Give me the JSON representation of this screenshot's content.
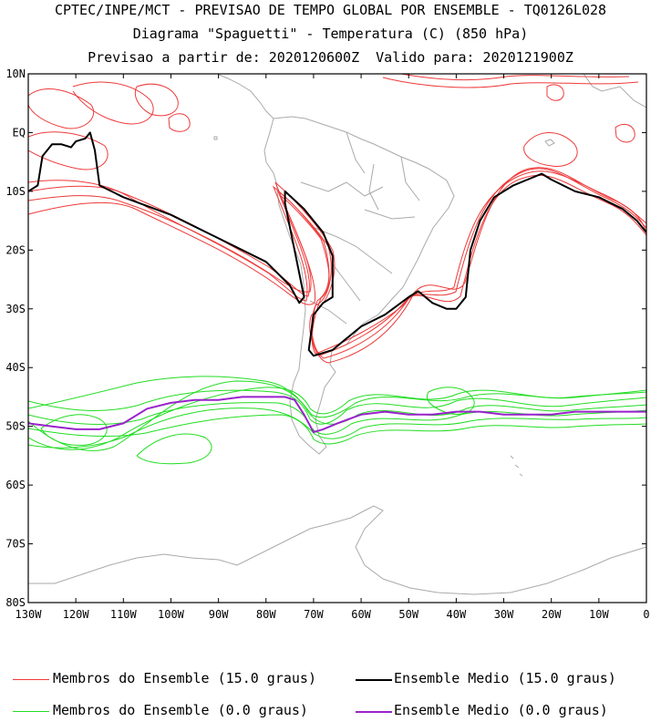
{
  "header": {
    "line1": "CPTEC/INPE/MCT - PREVISAO DE TEMPO GLOBAL POR ENSEMBLE - TQ0126L028",
    "line2": "Diagrama \"Spaguetti\" - Temperatura (C) (850 hPa)",
    "line3": "Previsao a partir de: 2020120600Z  Valido para: 2020121900Z"
  },
  "axes": {
    "y_ticks": [
      "10N",
      "EQ",
      "10S",
      "20S",
      "30S",
      "40S",
      "50S",
      "60S",
      "70S",
      "80S"
    ],
    "x_ticks": [
      "130W",
      "120W",
      "110W",
      "100W",
      "90W",
      "80W",
      "70W",
      "60W",
      "50W",
      "40W",
      "30W",
      "20W",
      "10W",
      "0"
    ]
  },
  "legend": {
    "item1": "Membros do Ensemble (15.0 graus)",
    "item2": "Ensemble Medio (15.0 graus)",
    "item3": "Membros do Ensemble (0.0 graus)",
    "item4": "Ensemble Medio (0.0 graus)"
  },
  "colors": {
    "member_15": "#ee3a3a",
    "mean_15": "#000000",
    "member_0": "#22dd22",
    "mean_0": "#9922cc",
    "coast": "#aaaaaa"
  },
  "chart_data": {
    "type": "line",
    "xlim": [
      -130,
      0
    ],
    "ylim": [
      -80,
      10
    ],
    "series": [
      {
        "name": "Ensemble Medio (15.0 graus)",
        "lon": [
          -130,
          -128,
          -127,
          -125,
          -123,
          -121,
          -120,
          -118,
          -117,
          -116,
          -115,
          -110,
          -100,
          -90,
          -80,
          -75,
          -73,
          -72,
          -73,
          -75,
          -76,
          -76,
          -72,
          -68,
          -66,
          -66,
          -68,
          -70,
          -71,
          -70,
          -66,
          -60,
          -55,
          -50,
          -48,
          -45,
          -42,
          -40,
          -38,
          -37,
          -35,
          -32,
          -28,
          -25,
          -22,
          -20,
          -15,
          -10,
          -5,
          -2,
          0
        ],
        "lat": [
          -10,
          -9,
          -4,
          -2,
          -2,
          -2.5,
          -1.5,
          -1,
          0,
          -3,
          -9,
          -11,
          -14,
          -18,
          -22,
          -26,
          -29,
          -28,
          -24,
          -16,
          -12,
          -10,
          -13,
          -17,
          -21,
          -28,
          -29,
          -31,
          -37,
          -38,
          -37,
          -33,
          -31,
          -28,
          -27,
          -29,
          -30,
          -30,
          -28,
          -20,
          -15,
          -11,
          -9,
          -8,
          -7,
          -8,
          -10,
          -11,
          -13,
          -15,
          -17
        ]
      },
      {
        "name": "Ensemble Medio (0.0 graus)",
        "lon": [
          -130,
          -125,
          -120,
          -115,
          -110,
          -105,
          -100,
          -95,
          -90,
          -85,
          -80,
          -76,
          -74,
          -72,
          -70,
          -68,
          -65,
          -60,
          -55,
          -50,
          -45,
          -40,
          -35,
          -30,
          -25,
          -20,
          -15,
          -10,
          -5,
          0
        ],
        "lat": [
          -49.5,
          -50,
          -50.5,
          -50.5,
          -49.5,
          -47,
          -46,
          -45.5,
          -45.5,
          -45,
          -45,
          -45,
          -45.5,
          -48,
          -51,
          -50.5,
          -49.5,
          -48,
          -47.5,
          -48,
          -48,
          -47.5,
          -47.5,
          -48,
          -48,
          -48,
          -47.5,
          -47.5,
          -47.5,
          -47.5
        ]
      }
    ]
  }
}
